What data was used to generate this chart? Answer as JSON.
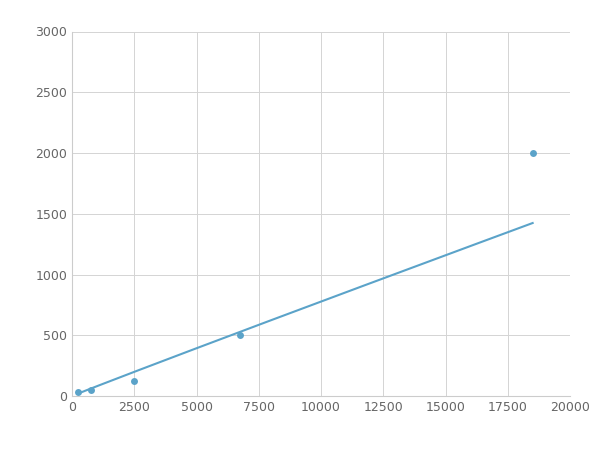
{
  "x": [
    250,
    750,
    2500,
    6750,
    18500
  ],
  "y": [
    30,
    50,
    125,
    500,
    2000
  ],
  "line_color": "#5ba3c9",
  "marker_color": "#5ba3c9",
  "marker_size": 5,
  "line_width": 1.5,
  "xlim": [
    0,
    20000
  ],
  "ylim": [
    0,
    3000
  ],
  "xticks": [
    0,
    2500,
    5000,
    7500,
    10000,
    12500,
    15000,
    17500,
    20000
  ],
  "yticks": [
    0,
    500,
    1000,
    1500,
    2000,
    2500,
    3000
  ],
  "grid_color": "#d4d4d4",
  "background_color": "#ffffff",
  "figsize": [
    6.0,
    4.5
  ],
  "dpi": 100
}
